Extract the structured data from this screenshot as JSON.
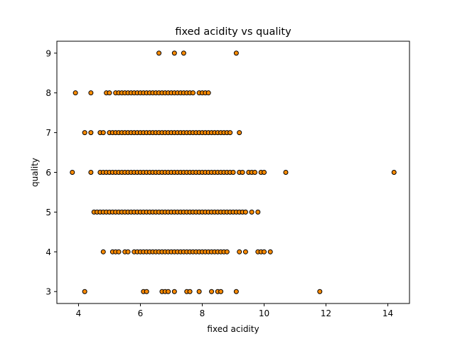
{
  "chart_data": {
    "type": "scatter",
    "title": "fixed acidity vs quality",
    "xlabel": "fixed acidity",
    "ylabel": "quality",
    "xlim": [
      3.3,
      14.7
    ],
    "ylim": [
      2.7,
      9.3
    ],
    "xticks": [
      4,
      6,
      8,
      10,
      12,
      14
    ],
    "yticks": [
      3,
      4,
      5,
      6,
      7,
      8,
      9
    ],
    "grid": false,
    "marker_fill": "#ff8c00",
    "marker_edge": "#000000",
    "series": [
      {
        "points": [
          [
            4.2,
            3
          ],
          [
            6.1,
            3
          ],
          [
            6.2,
            3
          ],
          [
            6.7,
            3
          ],
          [
            6.8,
            3
          ],
          [
            6.9,
            3
          ],
          [
            7.1,
            3
          ],
          [
            7.5,
            3
          ],
          [
            7.6,
            3
          ],
          [
            7.9,
            3
          ],
          [
            8.3,
            3
          ],
          [
            8.5,
            3
          ],
          [
            8.6,
            3
          ],
          [
            9.1,
            3
          ],
          [
            11.8,
            3
          ],
          [
            4.8,
            4
          ],
          [
            5.1,
            4
          ],
          [
            5.2,
            4
          ],
          [
            5.3,
            4
          ],
          [
            5.5,
            4
          ],
          [
            5.6,
            4
          ],
          [
            5.8,
            4
          ],
          [
            5.9,
            4
          ],
          [
            6.0,
            4
          ],
          [
            6.1,
            4
          ],
          [
            6.2,
            4
          ],
          [
            6.3,
            4
          ],
          [
            6.4,
            4
          ],
          [
            6.5,
            4
          ],
          [
            6.6,
            4
          ],
          [
            6.7,
            4
          ],
          [
            6.8,
            4
          ],
          [
            6.9,
            4
          ],
          [
            7.0,
            4
          ],
          [
            7.1,
            4
          ],
          [
            7.2,
            4
          ],
          [
            7.3,
            4
          ],
          [
            7.4,
            4
          ],
          [
            7.5,
            4
          ],
          [
            7.6,
            4
          ],
          [
            7.7,
            4
          ],
          [
            7.8,
            4
          ],
          [
            7.9,
            4
          ],
          [
            8.0,
            4
          ],
          [
            8.1,
            4
          ],
          [
            8.2,
            4
          ],
          [
            8.3,
            4
          ],
          [
            8.4,
            4
          ],
          [
            8.5,
            4
          ],
          [
            8.6,
            4
          ],
          [
            8.7,
            4
          ],
          [
            8.8,
            4
          ],
          [
            9.2,
            4
          ],
          [
            9.4,
            4
          ],
          [
            9.8,
            4
          ],
          [
            9.9,
            4
          ],
          [
            10.0,
            4
          ],
          [
            10.2,
            4
          ],
          [
            4.5,
            5
          ],
          [
            4.6,
            5
          ],
          [
            4.7,
            5
          ],
          [
            4.8,
            5
          ],
          [
            4.9,
            5
          ],
          [
            5.0,
            5
          ],
          [
            5.1,
            5
          ],
          [
            5.2,
            5
          ],
          [
            5.3,
            5
          ],
          [
            5.4,
            5
          ],
          [
            5.5,
            5
          ],
          [
            5.6,
            5
          ],
          [
            5.7,
            5
          ],
          [
            5.8,
            5
          ],
          [
            5.9,
            5
          ],
          [
            6.0,
            5
          ],
          [
            6.1,
            5
          ],
          [
            6.2,
            5
          ],
          [
            6.3,
            5
          ],
          [
            6.4,
            5
          ],
          [
            6.5,
            5
          ],
          [
            6.6,
            5
          ],
          [
            6.7,
            5
          ],
          [
            6.8,
            5
          ],
          [
            6.9,
            5
          ],
          [
            7.0,
            5
          ],
          [
            7.1,
            5
          ],
          [
            7.2,
            5
          ],
          [
            7.3,
            5
          ],
          [
            7.4,
            5
          ],
          [
            7.5,
            5
          ],
          [
            7.6,
            5
          ],
          [
            7.7,
            5
          ],
          [
            7.8,
            5
          ],
          [
            7.9,
            5
          ],
          [
            8.0,
            5
          ],
          [
            8.1,
            5
          ],
          [
            8.2,
            5
          ],
          [
            8.3,
            5
          ],
          [
            8.4,
            5
          ],
          [
            8.5,
            5
          ],
          [
            8.6,
            5
          ],
          [
            8.7,
            5
          ],
          [
            8.8,
            5
          ],
          [
            8.9,
            5
          ],
          [
            9.0,
            5
          ],
          [
            9.1,
            5
          ],
          [
            9.2,
            5
          ],
          [
            9.3,
            5
          ],
          [
            9.4,
            5
          ],
          [
            9.6,
            5
          ],
          [
            9.8,
            5
          ],
          [
            3.8,
            6
          ],
          [
            4.4,
            6
          ],
          [
            4.7,
            6
          ],
          [
            4.8,
            6
          ],
          [
            4.9,
            6
          ],
          [
            5.0,
            6
          ],
          [
            5.1,
            6
          ],
          [
            5.2,
            6
          ],
          [
            5.3,
            6
          ],
          [
            5.4,
            6
          ],
          [
            5.5,
            6
          ],
          [
            5.6,
            6
          ],
          [
            5.7,
            6
          ],
          [
            5.8,
            6
          ],
          [
            5.9,
            6
          ],
          [
            6.0,
            6
          ],
          [
            6.1,
            6
          ],
          [
            6.2,
            6
          ],
          [
            6.3,
            6
          ],
          [
            6.4,
            6
          ],
          [
            6.5,
            6
          ],
          [
            6.6,
            6
          ],
          [
            6.7,
            6
          ],
          [
            6.8,
            6
          ],
          [
            6.9,
            6
          ],
          [
            7.0,
            6
          ],
          [
            7.1,
            6
          ],
          [
            7.2,
            6
          ],
          [
            7.3,
            6
          ],
          [
            7.4,
            6
          ],
          [
            7.5,
            6
          ],
          [
            7.6,
            6
          ],
          [
            7.7,
            6
          ],
          [
            7.8,
            6
          ],
          [
            7.9,
            6
          ],
          [
            8.0,
            6
          ],
          [
            8.1,
            6
          ],
          [
            8.2,
            6
          ],
          [
            8.3,
            6
          ],
          [
            8.4,
            6
          ],
          [
            8.5,
            6
          ],
          [
            8.6,
            6
          ],
          [
            8.7,
            6
          ],
          [
            8.8,
            6
          ],
          [
            8.9,
            6
          ],
          [
            9.0,
            6
          ],
          [
            9.2,
            6
          ],
          [
            9.3,
            6
          ],
          [
            9.5,
            6
          ],
          [
            9.6,
            6
          ],
          [
            9.7,
            6
          ],
          [
            9.9,
            6
          ],
          [
            10.0,
            6
          ],
          [
            10.7,
            6
          ],
          [
            14.2,
            6
          ],
          [
            4.2,
            7
          ],
          [
            4.4,
            7
          ],
          [
            4.7,
            7
          ],
          [
            4.8,
            7
          ],
          [
            5.0,
            7
          ],
          [
            5.1,
            7
          ],
          [
            5.2,
            7
          ],
          [
            5.3,
            7
          ],
          [
            5.4,
            7
          ],
          [
            5.5,
            7
          ],
          [
            5.6,
            7
          ],
          [
            5.7,
            7
          ],
          [
            5.8,
            7
          ],
          [
            5.9,
            7
          ],
          [
            6.0,
            7
          ],
          [
            6.1,
            7
          ],
          [
            6.2,
            7
          ],
          [
            6.3,
            7
          ],
          [
            6.4,
            7
          ],
          [
            6.5,
            7
          ],
          [
            6.6,
            7
          ],
          [
            6.7,
            7
          ],
          [
            6.8,
            7
          ],
          [
            6.9,
            7
          ],
          [
            7.0,
            7
          ],
          [
            7.1,
            7
          ],
          [
            7.2,
            7
          ],
          [
            7.3,
            7
          ],
          [
            7.4,
            7
          ],
          [
            7.5,
            7
          ],
          [
            7.6,
            7
          ],
          [
            7.7,
            7
          ],
          [
            7.8,
            7
          ],
          [
            7.9,
            7
          ],
          [
            8.0,
            7
          ],
          [
            8.1,
            7
          ],
          [
            8.2,
            7
          ],
          [
            8.3,
            7
          ],
          [
            8.4,
            7
          ],
          [
            8.5,
            7
          ],
          [
            8.6,
            7
          ],
          [
            8.7,
            7
          ],
          [
            8.8,
            7
          ],
          [
            8.9,
            7
          ],
          [
            9.2,
            7
          ],
          [
            3.9,
            8
          ],
          [
            4.4,
            8
          ],
          [
            4.9,
            8
          ],
          [
            5.0,
            8
          ],
          [
            5.2,
            8
          ],
          [
            5.3,
            8
          ],
          [
            5.4,
            8
          ],
          [
            5.5,
            8
          ],
          [
            5.6,
            8
          ],
          [
            5.7,
            8
          ],
          [
            5.8,
            8
          ],
          [
            5.9,
            8
          ],
          [
            6.0,
            8
          ],
          [
            6.1,
            8
          ],
          [
            6.2,
            8
          ],
          [
            6.3,
            8
          ],
          [
            6.4,
            8
          ],
          [
            6.5,
            8
          ],
          [
            6.6,
            8
          ],
          [
            6.7,
            8
          ],
          [
            6.8,
            8
          ],
          [
            6.9,
            8
          ],
          [
            7.0,
            8
          ],
          [
            7.1,
            8
          ],
          [
            7.2,
            8
          ],
          [
            7.3,
            8
          ],
          [
            7.4,
            8
          ],
          [
            7.5,
            8
          ],
          [
            7.6,
            8
          ],
          [
            7.7,
            8
          ],
          [
            7.9,
            8
          ],
          [
            8.0,
            8
          ],
          [
            8.1,
            8
          ],
          [
            8.2,
            8
          ],
          [
            6.6,
            9
          ],
          [
            7.1,
            9
          ],
          [
            7.4,
            9
          ],
          [
            9.1,
            9
          ]
        ]
      }
    ]
  }
}
